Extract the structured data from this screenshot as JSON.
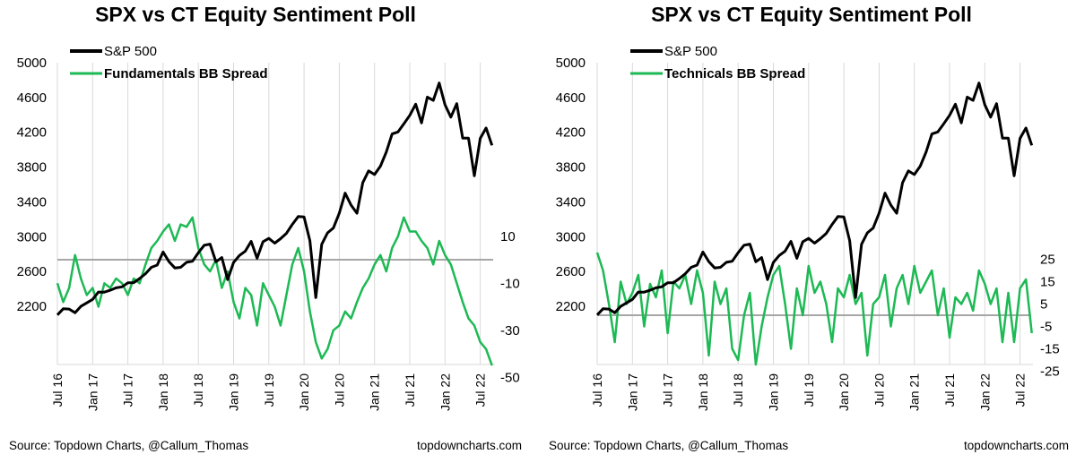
{
  "chart_data": [
    {
      "type": "line",
      "title": "SPX vs CT Equity Sentiment Poll",
      "x_tick_labels": [
        "Jul 16",
        "Jan 17",
        "Jul 17",
        "Jan 18",
        "Jul 18",
        "Jan 19",
        "Jul 19",
        "Jan 20",
        "Jul 20",
        "Jan 21",
        "Jul 21",
        "Jan 22",
        "Jul 22"
      ],
      "x_start": "Jul 2016",
      "x_frequency": "monthly",
      "y_left": {
        "ticks": [
          2200,
          2600,
          3000,
          3400,
          3800,
          4200,
          4600,
          5000
        ],
        "range": [
          1530,
          5000
        ]
      },
      "y_right": {
        "ticks": [
          10,
          -10,
          -30,
          -50
        ],
        "range": [
          -45,
          84
        ],
        "reference_line": 0
      },
      "legend": "top-left",
      "series": [
        {
          "name": "S&P 500",
          "axis": "left",
          "color": "#000000",
          "values": [
            2100,
            2171,
            2168,
            2126,
            2199,
            2239,
            2279,
            2364,
            2363,
            2384,
            2412,
            2423,
            2470,
            2472,
            2519,
            2575,
            2648,
            2674,
            2824,
            2714,
            2641,
            2648,
            2705,
            2718,
            2816,
            2902,
            2914,
            2712,
            2760,
            2507,
            2704,
            2784,
            2834,
            2946,
            2752,
            2942,
            2980,
            2926,
            2977,
            3038,
            3141,
            3231,
            3226,
            2954,
            2300,
            2912,
            3044,
            3100,
            3271,
            3500,
            3363,
            3270,
            3622,
            3756,
            3714,
            3811,
            3973,
            4181,
            4204,
            4298,
            4395,
            4523,
            4308,
            4605,
            4567,
            4766,
            4516,
            4374,
            4530,
            4132,
            4132,
            3700,
            4130,
            4250,
            4050
          ]
        },
        {
          "name": "Fundamentals BB Spread",
          "axis": "right",
          "color": "#1db954",
          "values": [
            -10,
            -18,
            -12,
            2,
            -8,
            -15,
            -12,
            -20,
            -10,
            -12,
            -8,
            -10,
            -15,
            -8,
            -10,
            -2,
            5,
            8,
            12,
            15,
            8,
            15,
            14,
            18,
            5,
            -2,
            -5,
            0,
            -12,
            -5,
            -18,
            -25,
            -12,
            -15,
            -28,
            -10,
            -15,
            -20,
            -28,
            -15,
            -2,
            5,
            -5,
            -22,
            -35,
            -42,
            -38,
            -30,
            -28,
            -22,
            -25,
            -18,
            -12,
            -8,
            -2,
            2,
            -5,
            5,
            10,
            18,
            12,
            12,
            8,
            5,
            -2,
            8,
            2,
            -2,
            -10,
            -18,
            -25,
            -28,
            -35,
            -38,
            -45
          ]
        }
      ],
      "source": "Source: Topdown Charts, @Callum_Thomas",
      "website": "topdowncharts.com"
    },
    {
      "type": "line",
      "title": "SPX vs CT Equity Sentiment Poll",
      "x_tick_labels": [
        "Jul 16",
        "Jan 17",
        "Jul 17",
        "Jan 18",
        "Jul 18",
        "Jan 19",
        "Jul 19",
        "Jan 20",
        "Jul 20",
        "Jan 21",
        "Jul 21",
        "Jan 22",
        "Jul 22"
      ],
      "x_start": "Jul 2016",
      "x_frequency": "monthly",
      "y_left": {
        "ticks": [
          2200,
          2600,
          3000,
          3400,
          3800,
          4200,
          4600,
          5000
        ],
        "range": [
          1530,
          5000
        ]
      },
      "y_right": {
        "ticks": [
          25,
          15,
          5,
          -5,
          -15,
          -25
        ],
        "range": [
          -22,
          113
        ],
        "reference_line": 0
      },
      "legend": "top-left",
      "series": [
        {
          "name": "S&P 500",
          "axis": "left",
          "color": "#000000",
          "values": [
            2100,
            2171,
            2168,
            2126,
            2199,
            2239,
            2279,
            2364,
            2363,
            2384,
            2412,
            2423,
            2470,
            2472,
            2519,
            2575,
            2648,
            2674,
            2824,
            2714,
            2641,
            2648,
            2705,
            2718,
            2816,
            2902,
            2914,
            2712,
            2760,
            2507,
            2704,
            2784,
            2834,
            2946,
            2752,
            2942,
            2980,
            2926,
            2977,
            3038,
            3141,
            3231,
            3226,
            2954,
            2300,
            2912,
            3044,
            3100,
            3271,
            3500,
            3363,
            3270,
            3622,
            3756,
            3714,
            3811,
            3973,
            4181,
            4204,
            4298,
            4395,
            4523,
            4308,
            4605,
            4567,
            4766,
            4516,
            4374,
            4530,
            4132,
            4132,
            3700,
            4130,
            4250,
            4050
          ]
        },
        {
          "name": "Technicals BB Spread",
          "axis": "right",
          "color": "#1db954",
          "values": [
            28,
            20,
            5,
            -12,
            15,
            5,
            10,
            18,
            -5,
            14,
            8,
            20,
            -8,
            15,
            12,
            18,
            5,
            20,
            10,
            -18,
            15,
            5,
            12,
            -15,
            -20,
            0,
            10,
            -22,
            -5,
            8,
            18,
            22,
            5,
            -15,
            12,
            0,
            22,
            10,
            15,
            5,
            -12,
            12,
            8,
            18,
            5,
            10,
            -18,
            5,
            8,
            18,
            -5,
            12,
            18,
            5,
            22,
            10,
            15,
            20,
            0,
            12,
            -10,
            8,
            5,
            10,
            2,
            20,
            14,
            5,
            12,
            -12,
            10,
            -12,
            12,
            16,
            -8
          ]
        }
      ],
      "source": "Source: Topdown Charts, @Callum_Thomas",
      "website": "topdowncharts.com"
    }
  ]
}
